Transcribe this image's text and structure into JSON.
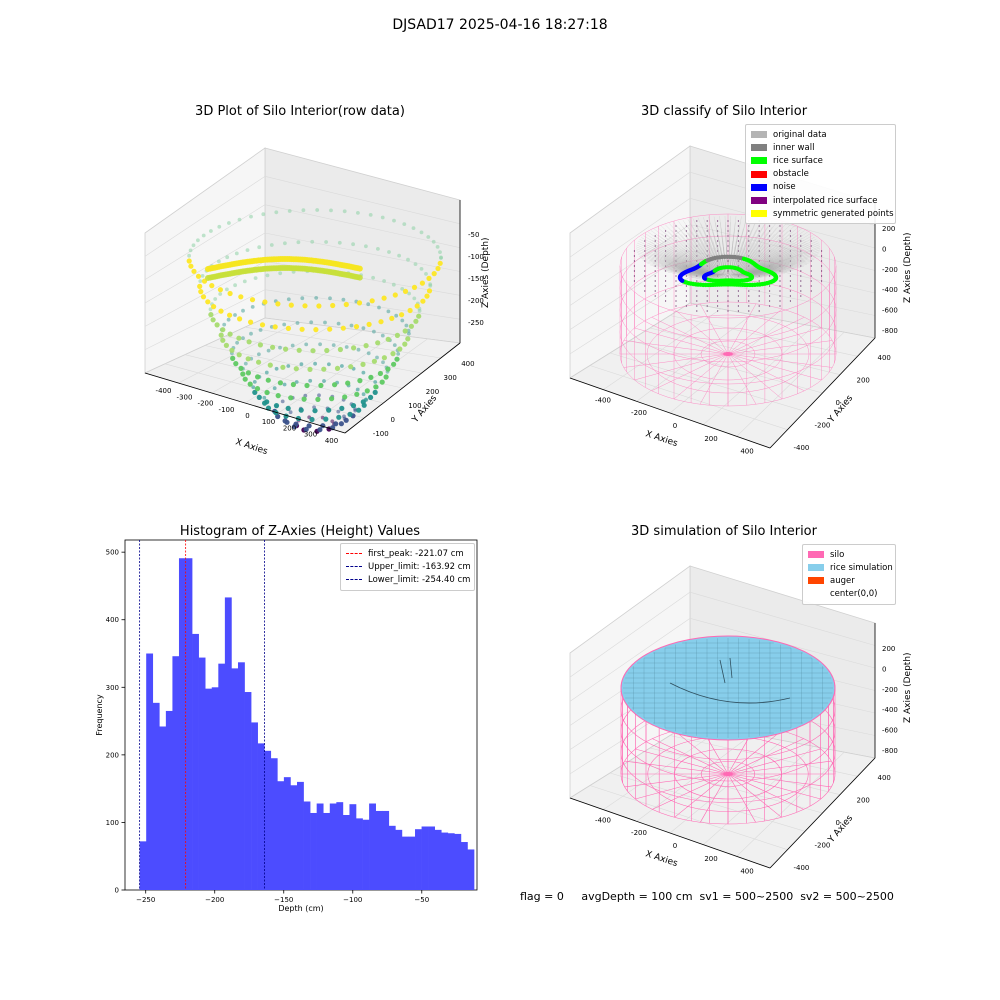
{
  "suptitle": "DJSAD17 2025-04-16 18:27:18",
  "panels": {
    "raw": {
      "title": "3D Plot of Silo Interior(row data)",
      "xlabel": "X Axies",
      "ylabel": "Y Axies",
      "zlabel": "Z Axies (Depth)",
      "xticks": [
        "-400",
        "-300",
        "-200",
        "-100",
        "0",
        "100",
        "200",
        "300",
        "400"
      ],
      "yticks": [
        "-100",
        "0",
        "100",
        "200",
        "300",
        "400"
      ],
      "zticks": [
        "-50",
        "-100",
        "-150",
        "-200",
        "-250"
      ]
    },
    "classify": {
      "title": "3D classify of Silo Interior",
      "xlabel": "X Axies",
      "ylabel": "Y Axies",
      "zlabel": "Z Axies (Depth)",
      "xticks": [
        "-400",
        "-200",
        "0",
        "200",
        "400"
      ],
      "yticks": [
        "-400",
        "-200",
        "0",
        "200",
        "400"
      ],
      "zticks": [
        "200",
        "0",
        "-200",
        "-400",
        "-600",
        "-800"
      ],
      "legend": [
        {
          "label": "original data",
          "color": "#b4b4b4"
        },
        {
          "label": "inner wall",
          "color": "#808080"
        },
        {
          "label": "rice surface",
          "color": "#00ff00"
        },
        {
          "label": "obstacle",
          "color": "#ff0000"
        },
        {
          "label": "noise",
          "color": "#0000ff"
        },
        {
          "label": "interpolated rice surface",
          "color": "#800080"
        },
        {
          "label": "symmetric generated points",
          "color": "#ffff00"
        }
      ]
    },
    "simulation": {
      "title": "3D simulation of Silo Interior",
      "xlabel": "X Axies",
      "ylabel": "Y Axies",
      "zlabel": "Z Axies (Depth)",
      "xticks": [
        "-400",
        "-200",
        "0",
        "200",
        "400"
      ],
      "yticks": [
        "-400",
        "-200",
        "0",
        "200",
        "400"
      ],
      "zticks": [
        "200",
        "0",
        "-200",
        "-400",
        "-600",
        "-800"
      ],
      "legend": [
        {
          "label": "silo",
          "color": "#ff69b4"
        },
        {
          "label": "rice simulation",
          "color": "#87ceeb"
        },
        {
          "label": "auger",
          "color": "#ff4500"
        },
        {
          "label": "center(0,0)",
          "color": ""
        }
      ]
    }
  },
  "footer": "flag = 0     avgDepth = 100 cm  sv1 = 500~2500  sv2 = 500~2500",
  "chart_data": [
    {
      "type": "bar",
      "title": "Histogram of Z-Axies (Height) Values",
      "xlabel": "Depth (cm)",
      "ylabel": "Frequency",
      "xlim": [
        -265,
        -10
      ],
      "ylim": [
        0,
        518
      ],
      "xticks": [
        -250,
        -200,
        -150,
        -100,
        -50
      ],
      "yticks": [
        0,
        100,
        200,
        300,
        400,
        500
      ],
      "bar_color": "#4c4cff",
      "bin_start": -254.4,
      "bin_width": 4.75,
      "values": [
        72,
        350,
        277,
        242,
        265,
        346,
        491,
        491,
        379,
        344,
        298,
        300,
        335,
        433,
        328,
        337,
        293,
        248,
        217,
        206,
        195,
        161,
        167,
        155,
        160,
        131,
        114,
        128,
        114,
        128,
        130,
        111,
        127,
        106,
        104,
        128,
        117,
        117,
        95,
        89,
        79,
        79,
        90,
        94,
        94,
        89,
        85,
        84,
        83,
        71,
        60
      ],
      "lines": [
        {
          "label": "first_peak: -221.07 cm",
          "x": -221.07,
          "color": "#ff0000"
        },
        {
          "label": "Upper_limit: -163.92 cm",
          "x": -163.92,
          "color": "#00008b"
        },
        {
          "label": "Lower_limit: -254.40 cm",
          "x": -254.4,
          "color": "#00008b"
        }
      ],
      "legend_position": "top-right"
    }
  ]
}
